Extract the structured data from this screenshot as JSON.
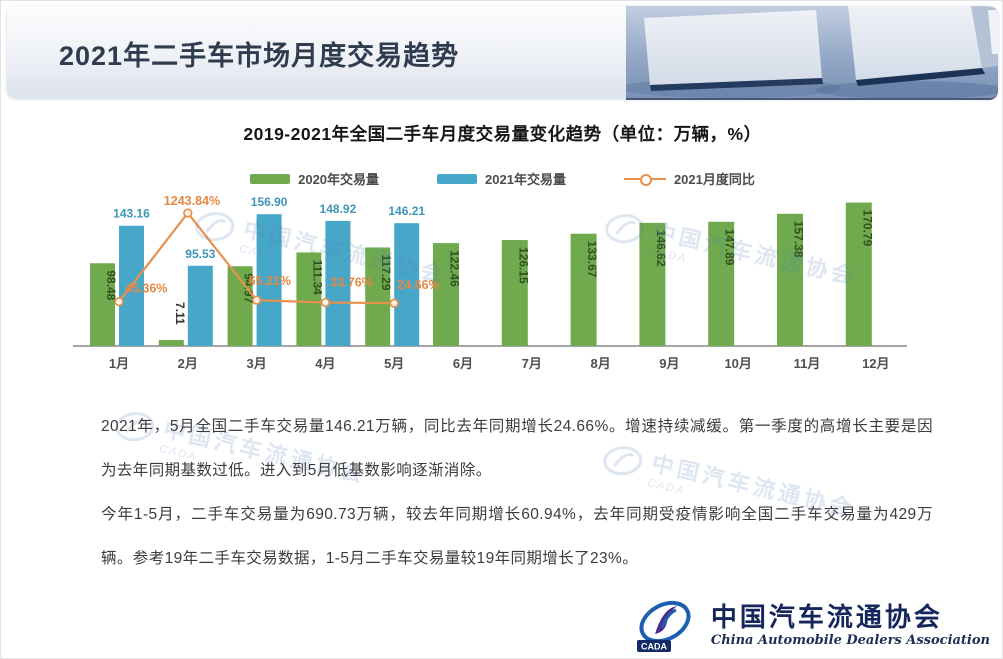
{
  "header": {
    "title": "2021年二手车市场月度交易趋势"
  },
  "chart": {
    "title": "2019-2021年全国二手车月度交易量变化趋势（单位：万辆，%）"
  },
  "chart_data": {
    "type": "bar",
    "categories": [
      "1月",
      "2月",
      "3月",
      "4月",
      "5月",
      "6月",
      "7月",
      "8月",
      "9月",
      "10月",
      "11月",
      "12月"
    ],
    "series": [
      {
        "name": "2020年交易量",
        "type": "bar",
        "color": "#6fab4e",
        "values": [
          98.48,
          7.11,
          94.97,
          111.34,
          117.29,
          122.46,
          126.15,
          133.67,
          146.62,
          147.89,
          157.38,
          170.79
        ]
      },
      {
        "name": "2021年交易量",
        "type": "bar",
        "color": "#47a7c8",
        "values": [
          143.16,
          95.53,
          156.9,
          148.92,
          146.21,
          null,
          null,
          null,
          null,
          null,
          null,
          null
        ]
      },
      {
        "name": "2021月度同比",
        "type": "line",
        "color": "#e8914c",
        "unit": "%",
        "values": [
          45.36,
          1243.84,
          65.21,
          33.76,
          24.66,
          null,
          null,
          null,
          null,
          null,
          null,
          null
        ],
        "labels": [
          "45.36%",
          "1243.84%",
          "65.21%",
          "33.76%",
          "24.66%"
        ]
      }
    ],
    "ylabel": "万辆",
    "y2label": "%",
    "ylim": [
      0,
      180
    ],
    "y2lim": [
      0,
      1400
    ],
    "grid": false,
    "legend_position": "top"
  },
  "body": {
    "paragraph1": "2021年，5月全国二手车交易量146.21万辆，同比去年同期增长24.66%。增速持续减缓。第一季度的高增长主要是因为去年同期基数过低。进入到5月低基数影响逐渐消除。",
    "paragraph2": "今年1-5月，二手车交易量为690.73万辆，较去年同期增长60.94%，去年同期受疫情影响全国二手车交易量为429万辆。参考19年二手车交易数据，1-5月二手车交易量较19年同期增长了23%。"
  },
  "watermark": {
    "text": "中国汽车流通协会",
    "sub": "CADA"
  },
  "footer": {
    "org_cn": "中国汽车流通协会",
    "org_en": "China Automobile Dealers Association",
    "logo_abbr": "CADA"
  },
  "colors": {
    "bar_2020": "#6fab4e",
    "bar_2021": "#47a7c8",
    "line_yoy": "#e8914c",
    "title_navy": "#2f3b4e"
  }
}
